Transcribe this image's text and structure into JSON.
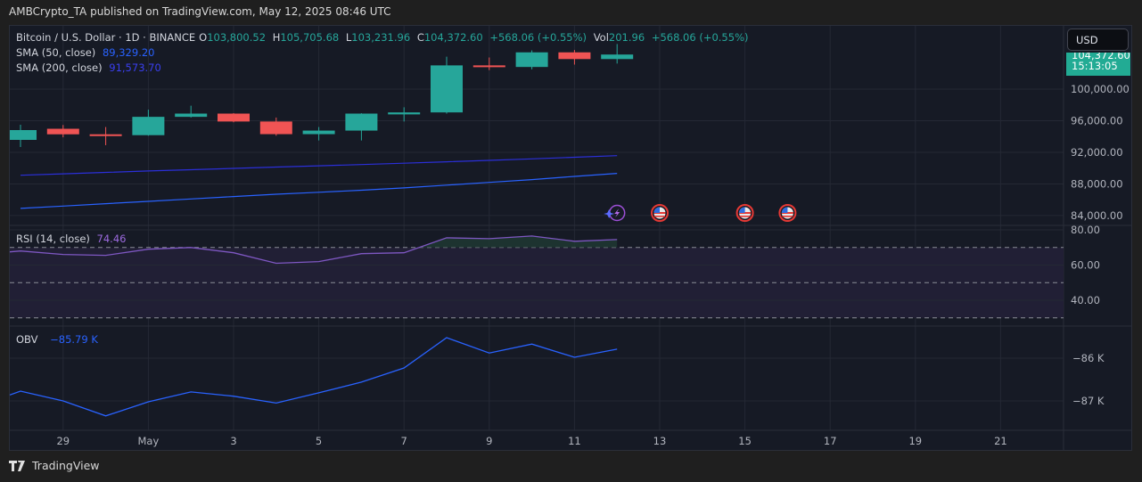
{
  "publisher_line": "AMBCrypto_TA published on TradingView.com, May 12, 2025 08:46 UTC",
  "symbol": {
    "title": "Bitcoin / U.S. Dollar · 1D · BINANCE",
    "o_label": "O",
    "open": "103,800.52",
    "h_label": "H",
    "high": "105,705.68",
    "l_label": "L",
    "low": "103,231.96",
    "c_label": "C",
    "close": "104,372.60",
    "change": "+568.06 (+0.55%)",
    "vol_label": "Vol",
    "volume": "201.96",
    "vol_change": "+568.06 (+0.55%)"
  },
  "indicators": {
    "sma50": {
      "label": "SMA (50, close)",
      "value": "89,329.20",
      "color": "#2962ff"
    },
    "sma200": {
      "label": "SMA (200, close)",
      "value": "91,573.70",
      "color": "#2b2fd8"
    },
    "rsi": {
      "label": "RSI (14, close)",
      "value": "74.46",
      "color": "#7e57c2"
    },
    "obv": {
      "label": "OBV",
      "value": "−85.79 K",
      "color": "#2962ff"
    }
  },
  "currency_button": "USD",
  "price_badge": {
    "price": "104,372.60",
    "countdown": "15:13:05",
    "color": "#22ab94"
  },
  "colors": {
    "up": "#26a69a",
    "down": "#f05454",
    "background": "#161a25",
    "grid": "#242834"
  },
  "price_axis": [
    "100,000.00",
    "96,000.00",
    "92,000.00",
    "88,000.00",
    "84,000.00"
  ],
  "rsi_axis": [
    "80.00",
    "60.00",
    "40.00"
  ],
  "obv_axis": [
    "−86 K",
    "−87 K"
  ],
  "time_axis": [
    {
      "label": "29",
      "date": "2025-04-29"
    },
    {
      "label": "May",
      "date": "2025-05-01"
    },
    {
      "label": "3",
      "date": "2025-05-03"
    },
    {
      "label": "5",
      "date": "2025-05-05"
    },
    {
      "label": "7",
      "date": "2025-05-07"
    },
    {
      "label": "9",
      "date": "2025-05-09"
    },
    {
      "label": "11",
      "date": "2025-05-11"
    },
    {
      "label": "13",
      "date": "2025-05-13"
    },
    {
      "label": "15",
      "date": "2025-05-15"
    },
    {
      "label": "17",
      "date": "2025-05-17"
    },
    {
      "label": "19",
      "date": "2025-05-19"
    },
    {
      "label": "21",
      "date": "2025-05-21"
    }
  ],
  "events": [
    {
      "icon": "lightning-icon",
      "date": "2025-05-12"
    },
    {
      "icon": "us-flag-icon",
      "date": "2025-05-13"
    },
    {
      "icon": "us-flag-icon",
      "date": "2025-05-15"
    },
    {
      "icon": "us-flag-icon",
      "date": "2025-05-16"
    }
  ],
  "chart_data": {
    "type": "candlestick",
    "dates": [
      "2025-04-28",
      "2025-04-29",
      "2025-04-30",
      "2025-05-01",
      "2025-05-02",
      "2025-05-03",
      "2025-05-04",
      "2025-05-05",
      "2025-05-06",
      "2025-05-07",
      "2025-05-08",
      "2025-05-09",
      "2025-05-10",
      "2025-05-11",
      "2025-05-12"
    ],
    "ohlc": [
      [
        93574,
        95490,
        92672,
        94814
      ],
      [
        94980,
        95460,
        93900,
        94280
      ],
      [
        94280,
        95200,
        92900,
        94170
      ],
      [
        94170,
        97400,
        94100,
        96490
      ],
      [
        96490,
        97900,
        96400,
        96900
      ],
      [
        96900,
        96950,
        95800,
        95900
      ],
      [
        95900,
        96400,
        94100,
        94300
      ],
      [
        94300,
        95200,
        93500,
        94750
      ],
      [
        94750,
        96950,
        93500,
        96900
      ],
      [
        96800,
        97700,
        95900,
        97050
      ],
      [
        97050,
        104100,
        96900,
        103000
      ],
      [
        103000,
        104000,
        102400,
        102800
      ],
      [
        102800,
        104900,
        102500,
        104650
      ],
      [
        104650,
        104950,
        103100,
        103800
      ],
      [
        103800.52,
        105705.68,
        103231.96,
        104372.6
      ]
    ],
    "sma50": [
      84900,
      85200,
      85500,
      85800,
      86100,
      86400,
      86700,
      86950,
      87200,
      87500,
      87850,
      88200,
      88550,
      88950,
      89329.2
    ],
    "sma200": [
      89100,
      89280,
      89460,
      89640,
      89800,
      89970,
      90130,
      90290,
      90450,
      90620,
      90800,
      90980,
      91170,
      91370,
      91573.7
    ],
    "price_ylim": [
      83000,
      107000
    ],
    "rsi": [
      68,
      66,
      65.5,
      69,
      70,
      67,
      61,
      62,
      66.5,
      67,
      75.5,
      75,
      76.5,
      73.5,
      74.46
    ],
    "rsi_levels": [
      70,
      50,
      30
    ],
    "rsi_ylim": [
      26,
      82
    ],
    "obv_k": [
      -86.77,
      -87.0,
      -87.35,
      -87.02,
      -86.79,
      -86.89,
      -87.05,
      -86.81,
      -86.56,
      -86.23,
      -85.52,
      -85.88,
      -85.67,
      -85.98,
      -85.79
    ],
    "obv_ylim": [
      -87.6,
      -85.3
    ],
    "grid": true
  },
  "footer": {
    "brand": "TradingView"
  }
}
